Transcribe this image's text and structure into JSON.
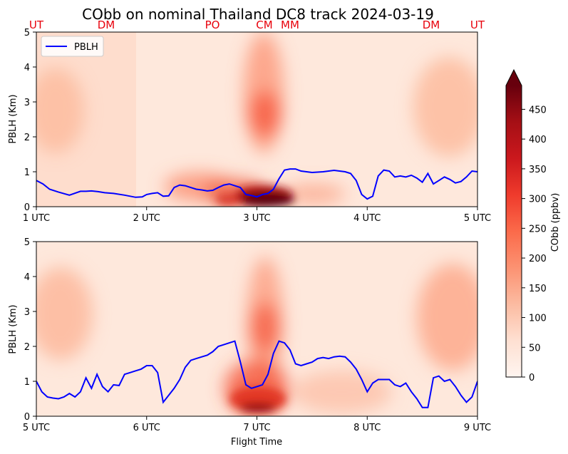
{
  "title": "CObb on nominal Thailand DC8 track 2024-03-19",
  "sites": [
    "UT",
    "DM",
    "PO",
    "CM",
    "MM",
    "DM",
    "UT"
  ],
  "legend": {
    "label": "PBLH",
    "color": "#0000ff"
  },
  "xlabel": "Flight Time",
  "colorbar": {
    "label": "CObb (ppbv)",
    "ticks": [
      "0",
      "50",
      "100",
      "150",
      "200",
      "250",
      "300",
      "350",
      "400",
      "450"
    ],
    "max": 490
  },
  "chart_data": [
    {
      "type": "line",
      "panel": "top",
      "ylabel": "PBLH (Km)",
      "ylim": [
        0,
        5
      ],
      "yticks": [
        "0",
        "1",
        "2",
        "3",
        "4",
        "5"
      ],
      "xlim": [
        1,
        5
      ],
      "xticks": [
        "1 UTC",
        "2 UTC",
        "3 UTC",
        "4 UTC",
        "5 UTC"
      ],
      "series": [
        {
          "name": "PBLH",
          "x": [
            1.0,
            1.06,
            1.12,
            1.2,
            1.3,
            1.4,
            1.45,
            1.5,
            1.56,
            1.62,
            1.7,
            1.8,
            1.9,
            1.96,
            2.0,
            2.05,
            2.1,
            2.15,
            2.2,
            2.25,
            2.3,
            2.35,
            2.4,
            2.45,
            2.5,
            2.55,
            2.6,
            2.65,
            2.7,
            2.75,
            2.8,
            2.85,
            2.9,
            2.95,
            3.0,
            3.05,
            3.1,
            3.15,
            3.2,
            3.25,
            3.3,
            3.35,
            3.4,
            3.45,
            3.5,
            3.6,
            3.7,
            3.8,
            3.85,
            3.9,
            3.95,
            4.0,
            4.05,
            4.1,
            4.15,
            4.2,
            4.25,
            4.3,
            4.35,
            4.4,
            4.45,
            4.5,
            4.55,
            4.6,
            4.65,
            4.7,
            4.75,
            4.8,
            4.85,
            4.9,
            4.95,
            5.0
          ],
          "values": [
            0.75,
            0.65,
            0.5,
            0.42,
            0.33,
            0.44,
            0.44,
            0.45,
            0.43,
            0.4,
            0.38,
            0.33,
            0.27,
            0.28,
            0.35,
            0.38,
            0.4,
            0.3,
            0.31,
            0.55,
            0.62,
            0.6,
            0.55,
            0.5,
            0.48,
            0.45,
            0.47,
            0.55,
            0.62,
            0.65,
            0.6,
            0.55,
            0.35,
            0.32,
            0.28,
            0.35,
            0.38,
            0.5,
            0.8,
            1.05,
            1.08,
            1.08,
            1.02,
            1.0,
            0.98,
            1.0,
            1.04,
            1.0,
            0.95,
            0.75,
            0.35,
            0.22,
            0.3,
            0.88,
            1.05,
            1.02,
            0.85,
            0.88,
            0.85,
            0.9,
            0.82,
            0.7,
            0.95,
            0.65,
            0.75,
            0.85,
            0.78,
            0.68,
            0.72,
            0.85,
            1.02,
            1.0
          ]
        }
      ]
    },
    {
      "type": "line",
      "panel": "bottom",
      "ylabel": "PBLH (Km)",
      "ylim": [
        0,
        5
      ],
      "yticks": [
        "0",
        "1",
        "2",
        "3",
        "4",
        "5"
      ],
      "xlim": [
        5,
        9
      ],
      "xticks": [
        "5 UTC",
        "6 UTC",
        "7 UTC",
        "8 UTC",
        "9 UTC"
      ],
      "series": [
        {
          "name": "PBLH",
          "x": [
            5.0,
            5.05,
            5.1,
            5.15,
            5.2,
            5.25,
            5.3,
            5.35,
            5.4,
            5.45,
            5.5,
            5.55,
            5.6,
            5.65,
            5.7,
            5.75,
            5.8,
            5.85,
            5.9,
            5.95,
            6.0,
            6.05,
            6.1,
            6.15,
            6.2,
            6.25,
            6.3,
            6.35,
            6.4,
            6.45,
            6.5,
            6.55,
            6.6,
            6.65,
            6.7,
            6.75,
            6.8,
            6.85,
            6.9,
            6.95,
            7.0,
            7.05,
            7.1,
            7.15,
            7.2,
            7.25,
            7.3,
            7.35,
            7.4,
            7.45,
            7.5,
            7.55,
            7.6,
            7.65,
            7.7,
            7.75,
            7.8,
            7.85,
            7.9,
            7.95,
            8.0,
            8.05,
            8.1,
            8.15,
            8.2,
            8.25,
            8.3,
            8.35,
            8.4,
            8.45,
            8.5,
            8.55,
            8.6,
            8.65,
            8.7,
            8.75,
            8.8,
            8.85,
            8.9,
            8.95,
            9.0
          ],
          "values": [
            1.0,
            0.7,
            0.55,
            0.52,
            0.5,
            0.55,
            0.65,
            0.55,
            0.7,
            1.1,
            0.8,
            1.2,
            0.85,
            0.7,
            0.9,
            0.88,
            1.2,
            1.25,
            1.3,
            1.35,
            1.45,
            1.45,
            1.25,
            0.4,
            0.6,
            0.8,
            1.05,
            1.4,
            1.6,
            1.65,
            1.7,
            1.75,
            1.85,
            2.0,
            2.05,
            2.1,
            2.15,
            1.55,
            0.9,
            0.8,
            0.85,
            0.9,
            1.2,
            1.8,
            2.15,
            2.1,
            1.9,
            1.5,
            1.45,
            1.5,
            1.55,
            1.65,
            1.68,
            1.65,
            1.7,
            1.72,
            1.7,
            1.55,
            1.35,
            1.05,
            0.7,
            0.95,
            1.05,
            1.05,
            1.05,
            0.9,
            0.85,
            0.95,
            0.7,
            0.5,
            0.25,
            0.25,
            1.1,
            1.15,
            1.0,
            1.05,
            0.85,
            0.6,
            0.4,
            0.55,
            1.0
          ]
        }
      ]
    }
  ]
}
